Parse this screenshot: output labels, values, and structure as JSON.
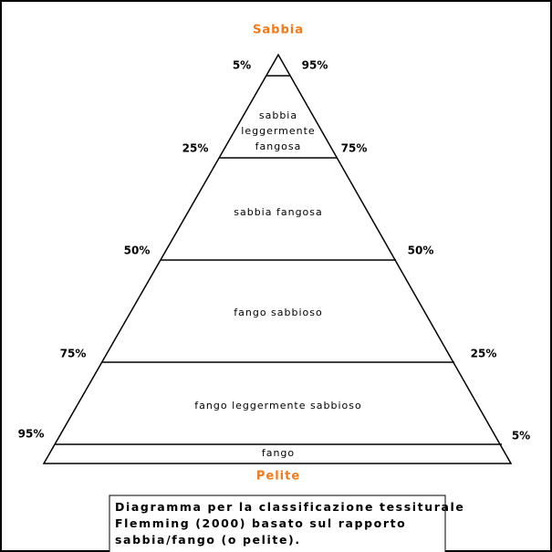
{
  "apex_label": "Sabbia",
  "base_label": "Pelite",
  "left_percents": [
    "5%",
    "25%",
    "50%",
    "75%",
    "95%"
  ],
  "right_percents": [
    "95%",
    "75%",
    "50%",
    "25%",
    "5%"
  ],
  "zones": [
    {
      "lines": [
        "sabbia",
        "leggermente",
        "fangosa"
      ]
    },
    {
      "lines": [
        "sabbia fangosa"
      ]
    },
    {
      "lines": [
        "fango sabbioso"
      ]
    },
    {
      "lines": [
        "fango leggermente sabbioso"
      ]
    },
    {
      "lines": [
        "fango"
      ]
    }
  ],
  "caption": [
    "Diagramma per la classificazione tessiturale",
    "Flemming (2000) basato sul rapporto",
    "sabbia/fango (o pelite)."
  ]
}
